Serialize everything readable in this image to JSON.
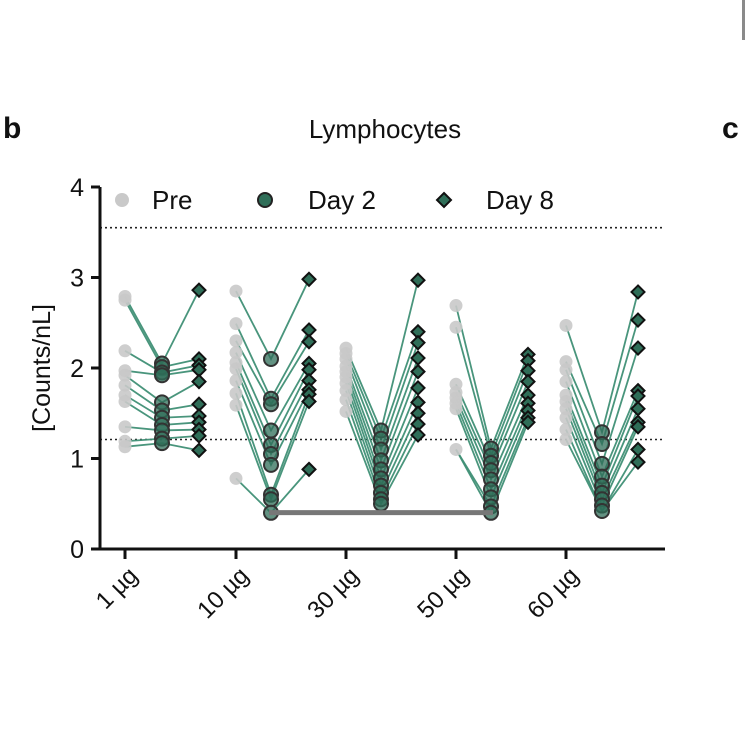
{
  "panel_label": "b",
  "next_panel_label": "c",
  "colors": {
    "pre": "#c9c9c9",
    "day2": "#2f6e58",
    "day8": "#2f6e58",
    "line": "#3f8f75",
    "axis": "#111111",
    "sigbar": "#777777"
  },
  "chart_data": {
    "type": "scatter",
    "title": "Lymphocytes",
    "ylabel": "[Counts/nL]",
    "xlabel": "",
    "ylim": [
      0,
      4
    ],
    "yticks": [
      0,
      1,
      2,
      3,
      4
    ],
    "categories": [
      "1 µg",
      "10 µg",
      "30 µg",
      "50 µg",
      "60 µg"
    ],
    "legend": [
      {
        "key": "pre",
        "label": "Pre",
        "marker": "circle-light"
      },
      {
        "key": "day2",
        "label": "Day 2",
        "marker": "circle-dark"
      },
      {
        "key": "day8",
        "label": "Day 8",
        "marker": "diamond-dark"
      }
    ],
    "reference_lines": [
      {
        "name": "upper-normal-limit",
        "y": 3.55,
        "style": "dotted"
      },
      {
        "name": "lower-normal-limit",
        "y": 1.21,
        "style": "dotted"
      }
    ],
    "significance_bar": {
      "from_category": "10 µg",
      "to_category": "50 µg",
      "y": 0.38
    },
    "groups": [
      {
        "dose": "1 µg",
        "pre": [
          2.79,
          2.75,
          2.19,
          1.97,
          1.92,
          1.81,
          1.7,
          1.63,
          1.35,
          1.19,
          1.13
        ],
        "day2": [
          2.05,
          2.01,
          1.95,
          1.92,
          1.62,
          1.53,
          1.45,
          1.37,
          1.31,
          1.22,
          1.17
        ],
        "day8": [
          2.86,
          2.1,
          2.03,
          1.98,
          1.85,
          1.6,
          1.47,
          1.4,
          1.32,
          1.25,
          1.09
        ]
      },
      {
        "dose": "10 µg",
        "pre": [
          2.85,
          2.49,
          2.3,
          2.17,
          2.06,
          1.99,
          1.86,
          1.72,
          1.59,
          0.78
        ],
        "day2": [
          2.1,
          1.66,
          1.6,
          1.31,
          1.15,
          1.05,
          0.93,
          0.6,
          0.55,
          0.4
        ],
        "day8": [
          2.98,
          2.42,
          2.29,
          2.05,
          1.98,
          1.86,
          1.76,
          1.71,
          1.63,
          0.88
        ]
      },
      {
        "dose": "30 µg",
        "pre": [
          2.22,
          2.16,
          2.1,
          2.02,
          1.96,
          1.9,
          1.83,
          1.75,
          1.65,
          1.52
        ],
        "day2": [
          1.31,
          1.22,
          1.1,
          0.98,
          0.88,
          0.78,
          0.7,
          0.62,
          0.55,
          0.5
        ],
        "day8": [
          2.97,
          2.4,
          2.28,
          2.11,
          1.96,
          1.78,
          1.62,
          1.5,
          1.38,
          1.26
        ]
      },
      {
        "dose": "50 µg",
        "pre": [
          2.69,
          2.45,
          1.82,
          1.73,
          1.67,
          1.61,
          1.55,
          1.1
        ],
        "day2": [
          1.11,
          1.03,
          0.95,
          0.87,
          0.77,
          0.66,
          0.57,
          0.47,
          0.4
        ],
        "day8": [
          2.15,
          2.08,
          1.97,
          1.85,
          1.7,
          1.61,
          1.53,
          1.45,
          1.4
        ]
      },
      {
        "dose": "60 µg",
        "pre": [
          2.47,
          2.07,
          1.98,
          1.85,
          1.7,
          1.63,
          1.55,
          1.45,
          1.32,
          1.21
        ],
        "day2": [
          1.29,
          1.16,
          0.94,
          0.8,
          0.7,
          0.62,
          0.55,
          0.48,
          0.42
        ],
        "day8": [
          2.84,
          2.53,
          2.22,
          1.75,
          1.69,
          1.55,
          1.4,
          1.35,
          1.1,
          0.96
        ]
      }
    ]
  }
}
